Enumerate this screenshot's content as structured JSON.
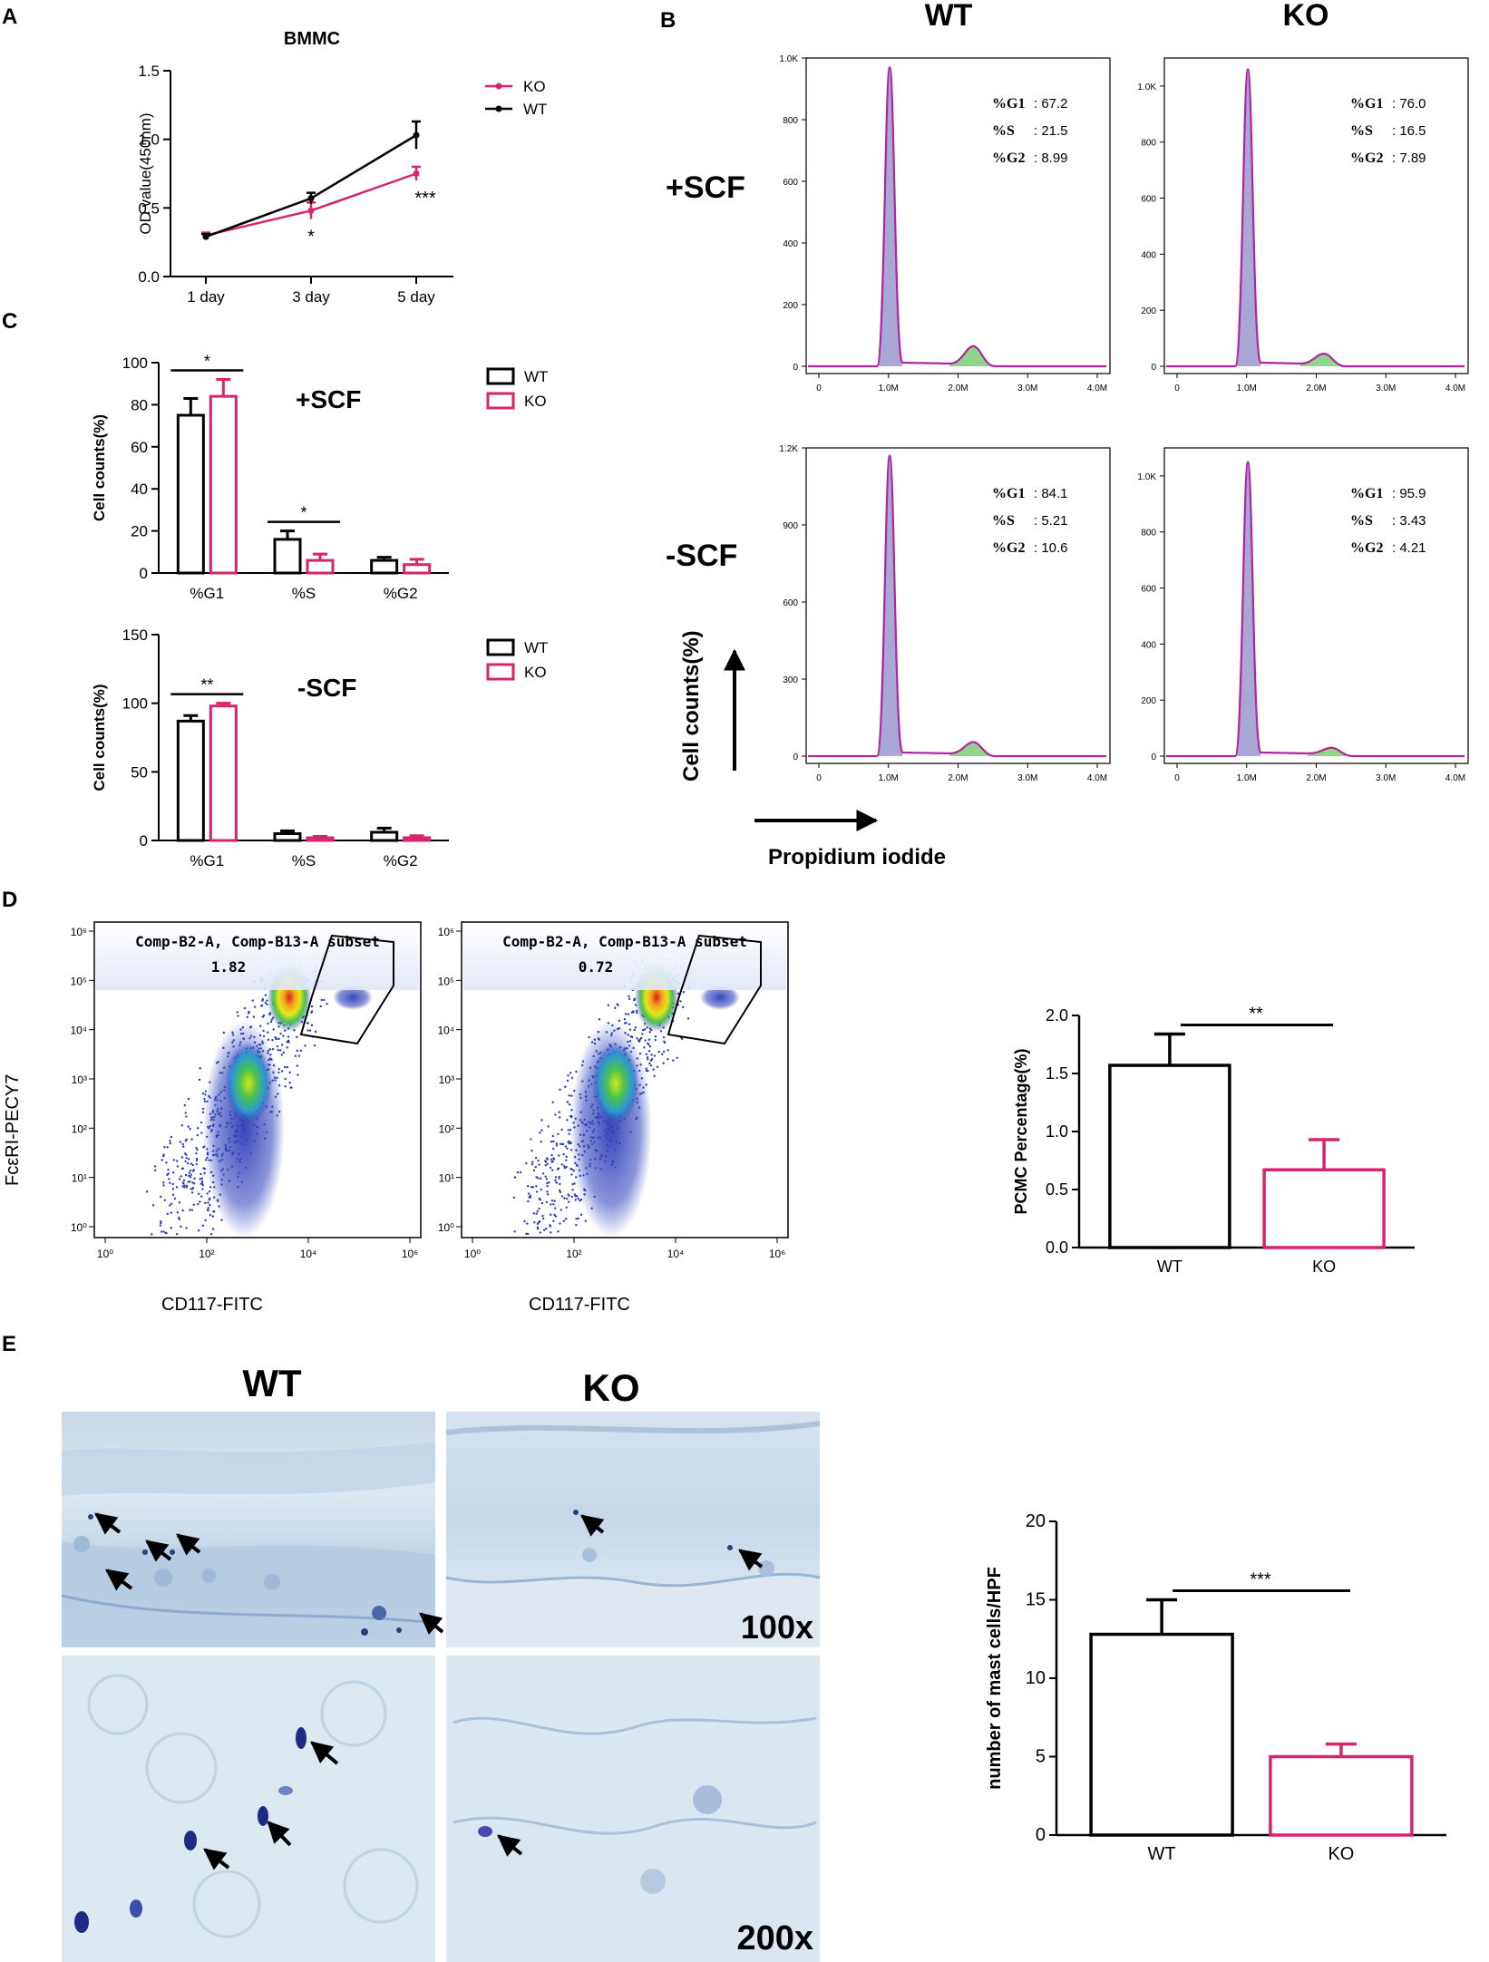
{
  "colors": {
    "wt": "#000000",
    "ko": "#d6246e",
    "hist_fill": "#a9a7d6",
    "hist_line": "#b0249c",
    "hist_g2_fill": "#8fd68a",
    "axis": "#000000"
  },
  "panels": {
    "A": {
      "letter": "A"
    },
    "B": {
      "letter": "B",
      "col_wt": "WT",
      "col_ko": "KO",
      "row_plus": "+SCF",
      "row_minus": "-SCF",
      "ylabel": "Cell counts(%)",
      "xlabel": "Propidium iodide",
      "stat_labels": [
        "%G1",
        "%S",
        "%G2"
      ]
    },
    "C": {
      "letter": "C"
    },
    "D": {
      "letter": "D",
      "gate_title": "Comp-B2-A, Comp-B13-A subset",
      "ylabel": "FcεRI-PECY7",
      "xlabel": "CD117-FITC",
      "gate_values": [
        "1.82",
        "0.72"
      ]
    },
    "E": {
      "letter": "E",
      "col_wt": "WT",
      "col_ko": "KO",
      "mag_100": "100x",
      "mag_200": "200x"
    }
  },
  "chart_data": [
    {
      "id": "A",
      "type": "line",
      "title": "BMMC",
      "xlabel": "",
      "ylabel": "OD value(450nm)",
      "categories": [
        "1 day",
        "3 day",
        "5 day"
      ],
      "ylim": [
        0.0,
        1.5
      ],
      "yticks": [
        "0.0",
        "0.5",
        "1.0",
        "1.5"
      ],
      "legend": "top-right",
      "series": [
        {
          "name": "KO",
          "values": [
            0.3,
            0.48,
            0.75
          ],
          "errors": [
            0.02,
            0.06,
            0.05
          ]
        },
        {
          "name": "WT",
          "values": [
            0.29,
            0.57,
            1.03
          ],
          "errors": [
            0.02,
            0.04,
            0.1
          ]
        }
      ],
      "annotations": [
        {
          "category": "3 day",
          "text": "*"
        },
        {
          "category": "5 day",
          "text": "***"
        }
      ]
    },
    {
      "id": "C-plus",
      "type": "bar",
      "title": "+SCF",
      "ylabel": "Cell counts(%)",
      "categories": [
        "%G1",
        "%S",
        "%G2"
      ],
      "ylim": [
        0,
        100
      ],
      "yticks": [
        "0",
        "20",
        "40",
        "60",
        "80",
        "100"
      ],
      "legend": "top-right",
      "series": [
        {
          "name": "WT",
          "values": [
            75,
            16,
            6
          ],
          "errors": [
            8,
            4,
            1.5
          ]
        },
        {
          "name": "KO",
          "values": [
            84,
            6,
            4
          ],
          "errors": [
            8,
            3,
            2.5
          ]
        }
      ],
      "significance": [
        {
          "category": "%G1",
          "text": "*"
        },
        {
          "category": "%S",
          "text": "*"
        }
      ]
    },
    {
      "id": "C-minus",
      "type": "bar",
      "title": "-SCF",
      "ylabel": "Cell counts(%)",
      "categories": [
        "%G1",
        "%S",
        "%G2"
      ],
      "ylim": [
        0,
        150
      ],
      "yticks": [
        "0",
        "50",
        "100",
        "150"
      ],
      "legend": "top-right",
      "series": [
        {
          "name": "WT",
          "values": [
            87,
            5,
            6
          ],
          "errors": [
            4,
            2,
            3
          ]
        },
        {
          "name": "KO",
          "values": [
            98,
            2,
            2
          ],
          "errors": [
            2,
            1,
            1.5
          ]
        }
      ],
      "significance": [
        {
          "category": "%G1",
          "text": "**"
        }
      ]
    },
    {
      "id": "B-WT-plus",
      "type": "area",
      "group": "WT",
      "condition": "+SCF",
      "xticks": [
        "0",
        "1.0M",
        "2.0M",
        "3.0M",
        "4.0M"
      ],
      "xlim": [
        0,
        4.0
      ],
      "ylim": [
        0,
        1000
      ],
      "yticks": [
        "0",
        "200",
        "400",
        "600",
        "800",
        "1.0K"
      ],
      "ytick_values": [
        0,
        200,
        400,
        600,
        800,
        1000
      ],
      "peak_g1": {
        "x": 1.1,
        "height": 970
      },
      "peak_g2": {
        "x": 2.2,
        "height": 65
      },
      "stats": {
        "%G1": "67.2",
        "%S": "21.5",
        "%G2": "8.99"
      }
    },
    {
      "id": "B-KO-plus",
      "type": "area",
      "group": "KO",
      "condition": "+SCF",
      "xticks": [
        "0",
        "1.0M",
        "2.0M",
        "3.0M",
        "4.0M"
      ],
      "xlim": [
        0,
        4.0
      ],
      "ylim": [
        0,
        1100
      ],
      "yticks": [
        "0",
        "200",
        "400",
        "600",
        "800",
        "1.0K"
      ],
      "ytick_values": [
        0,
        200,
        400,
        600,
        800,
        1000
      ],
      "peak_g1": {
        "x": 1.1,
        "height": 1060
      },
      "peak_g2": {
        "x": 2.1,
        "height": 45
      },
      "stats": {
        "%G1": "76.0",
        "%S": "16.5",
        "%G2": "7.89"
      }
    },
    {
      "id": "B-WT-minus",
      "type": "area",
      "group": "WT",
      "condition": "-SCF",
      "xticks": [
        "0",
        "1.0M",
        "2.0M",
        "3.0M",
        "4.0M"
      ],
      "xlim": [
        0,
        4.0
      ],
      "ylim": [
        0,
        1200
      ],
      "yticks": [
        "0",
        "300",
        "600",
        "900",
        "1.2K"
      ],
      "ytick_values": [
        0,
        300,
        600,
        900,
        1200
      ],
      "peak_g1": {
        "x": 1.1,
        "height": 1170
      },
      "peak_g2": {
        "x": 2.2,
        "height": 55
      },
      "stats": {
        "%G1": "84.1",
        "%S": "5.21",
        "%G2": "10.6"
      }
    },
    {
      "id": "B-KO-minus",
      "type": "area",
      "group": "KO",
      "condition": "-SCF",
      "xticks": [
        "0",
        "1.0M",
        "2.0M",
        "3.0M",
        "4.0M"
      ],
      "xlim": [
        0,
        4.0
      ],
      "ylim": [
        0,
        1100
      ],
      "yticks": [
        "0",
        "200",
        "400",
        "600",
        "800",
        "1.0K"
      ],
      "ytick_values": [
        0,
        200,
        400,
        600,
        800,
        1000
      ],
      "peak_g1": {
        "x": 1.1,
        "height": 1050
      },
      "peak_g2": {
        "x": 2.2,
        "height": 30
      },
      "stats": {
        "%G1": "95.9",
        "%S": "3.43",
        "%G2": "4.21"
      }
    },
    {
      "id": "D-bar",
      "type": "bar",
      "ylabel": "PCMC Percentage(%)",
      "categories": [
        "WT",
        "KO"
      ],
      "values": [
        1.57,
        0.67
      ],
      "errors": [
        0.27,
        0.26
      ],
      "ylim": [
        0.0,
        2.0
      ],
      "yticks": [
        "0.0",
        "0.5",
        "1.0",
        "1.5",
        "2.0"
      ],
      "significance": "**"
    },
    {
      "id": "E-bar",
      "type": "bar",
      "ylabel": "number of mast cells/HPF",
      "categories": [
        "WT",
        "KO"
      ],
      "values": [
        12.8,
        5.0
      ],
      "errors": [
        2.2,
        0.8
      ],
      "ylim": [
        0,
        20
      ],
      "yticks": [
        "0",
        "5",
        "10",
        "15",
        "20"
      ],
      "significance": "***"
    },
    {
      "id": "D-flow",
      "type": "scatter",
      "xticks": [
        "10⁰",
        "10²",
        "10⁴",
        "10⁶"
      ],
      "yticks": [
        "10⁰",
        "10¹",
        "10²",
        "10³",
        "10⁴",
        "10⁵",
        "10⁶"
      ]
    }
  ]
}
